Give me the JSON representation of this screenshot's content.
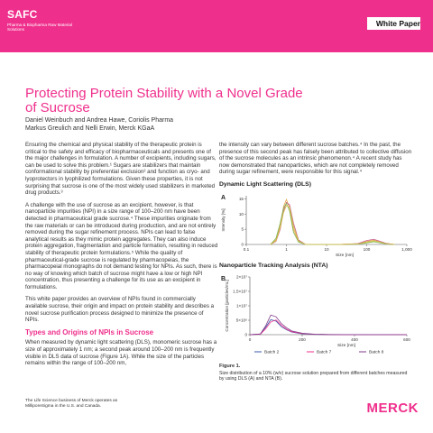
{
  "header": {
    "brand": "SAFC",
    "brand_sub": "Pharma & Biopharma Raw Material Solutions",
    "doc_type": "White Paper"
  },
  "title": "Protecting Protein Stability with a Novel Grade of Sucrose",
  "authors": {
    "line1": "Daniel Weinbuch and Andrea Hawe, Coriolis Pharma",
    "line2": "Markus Greulich and Nelli Erwin, Merck KGaA"
  },
  "left_column": {
    "p1": "Ensuring the chemical and physical stability of the therapeutic protein is critical to the safety and efficacy of biopharmaceuticals and presents one of the major challenges in formulation. A number of excipients, including sugars, can be used to solve this problem.¹ Sugars are stabilizers that maintain conformational stability by preferential exclusion² and function as cryo- and lyoprotectors in lyophilized formulations. Given these properties, it is not surprising that sucrose is one of the most widely used stabilizers in marketed drug products.³",
    "p2": "A challenge with the use of sucrose as an excipient, however, is that nanoparticle impurities (NPI) in a size range of 100–200 nm have been detected in pharmaceutical grade sucrose.⁴ These impurities originate from the raw materials or can be introduced during production, and are not entirely removed during the sugar refinement process. NPIs can lead to false analytical results as they mimic protein aggregates. They can also induce protein aggregation, fragmentation and particle formation, resulting in reduced stability of therapeutic protein formulations.⁵ While the quality of pharmaceutical-grade sucrose is regulated by pharmacopeias, the pharmacopeial monographs do not demand testing for NPIs. As such, there is no way of knowing which batch of sucrose might have a low or high NPI concentration, thus presenting a challenge for its use as an excipient in formulations.",
    "p3": "This white paper provides an overview of NPIs found in commercially available sucrose, their origin and impact on protein stability and describes a novel sucrose purification process designed to minimize the presence of NPIs.",
    "section_title": "Types and Origins of NPIs in Sucrose",
    "p4": "When measured by dynamic light scattering (DLS), monomeric sucrose has a size of approximately 1 nm; a second peak around 100–200 nm is frequently visible in DLS data of sucrose (Figure 1A). While the size of the particles remains within the range of 100–200 nm,"
  },
  "right_column": {
    "p1": "the intensity can vary between different sucrose batches.⁴ In the past, the presence of this second peak has falsely been attributed to collective diffusion of the sucrose molecules as an intrinsic phenomenon.⁴ A recent study has now demonstrated that nanoparticles, which are not completely removed during sugar refinement, were responsible for this signal.⁴"
  },
  "figure_dls": {
    "title": "Dynamic Light Scattering (DLS)",
    "panel": "A"
  },
  "figure_nta": {
    "title": "Nanoparticle Tracking Analysis (NTA)",
    "panel": "B"
  },
  "figure_caption": {
    "label": "Figure 1.",
    "text": "Size distribution of a 10% (w/v) sucrose solution prepared from different batches measured by using DLS (A) and NTA (B)."
  },
  "footer": {
    "note": "The Life Science business of Merck operates as MilliporeSigma in the U.S. and Canada.",
    "logo": "MERCK"
  },
  "chart_data": [
    {
      "type": "line",
      "title": "Dynamic Light Scattering (DLS)",
      "xlabel": "Size [nm]",
      "ylabel": "Intensity [%]",
      "x_scale": "log",
      "xlim": [
        0.1,
        1000
      ],
      "ylim": [
        0,
        16
      ],
      "x_ticks": [
        "0.1",
        "1",
        "10",
        "100",
        "1,000"
      ],
      "y_ticks": [
        "0",
        "5",
        "10",
        "15"
      ],
      "colors": [
        "#e8a24a",
        "#c85a8a",
        "#7bb24a",
        "#d4c24a"
      ],
      "series": [
        {
          "x": [
            0.4,
            0.55,
            0.7,
            0.85,
            1.0,
            1.2,
            1.5,
            2.0,
            3.0,
            20,
            60,
            100,
            150,
            200,
            300,
            500
          ],
          "y": [
            0,
            1.5,
            6,
            12.5,
            14.8,
            12,
            5,
            1,
            0,
            0,
            0.2,
            1.0,
            1.4,
            1.0,
            0.3,
            0
          ]
        },
        {
          "x": [
            0.4,
            0.55,
            0.7,
            0.85,
            1.0,
            1.2,
            1.5,
            2.0,
            3.0,
            20,
            60,
            100,
            150,
            200,
            300,
            500
          ],
          "y": [
            0,
            1,
            5,
            11,
            13.8,
            13,
            7,
            1.5,
            0,
            0,
            0.3,
            1.3,
            1.7,
            1.2,
            0.4,
            0
          ]
        },
        {
          "x": [
            0.4,
            0.55,
            0.7,
            0.85,
            1.0,
            1.2,
            1.5,
            2.0,
            3.0,
            20,
            60,
            100,
            150,
            200,
            300,
            500
          ],
          "y": [
            0,
            2,
            7,
            12,
            13.5,
            11,
            4,
            0.8,
            0,
            0,
            0.1,
            0.5,
            0.9,
            0.6,
            0.2,
            0
          ]
        },
        {
          "x": [
            0.4,
            0.55,
            0.7,
            0.85,
            1.0,
            1.2,
            1.5,
            2.0,
            3.0,
            20,
            60,
            100,
            150,
            200,
            300,
            500
          ],
          "y": [
            0,
            1.2,
            5.5,
            10.5,
            12.8,
            12.2,
            6,
            1.2,
            0,
            0,
            0.2,
            0.8,
            1.2,
            0.9,
            0.3,
            0
          ]
        }
      ]
    },
    {
      "type": "line",
      "title": "Nanoparticle Tracking Analysis (NTA)",
      "xlabel": "Size [nm]",
      "ylabel": "Concentration [particles/mL]",
      "xlim": [
        0,
        600
      ],
      "ylim": [
        0,
        20000000
      ],
      "x_ticks": [
        "0",
        "200",
        "400",
        "600"
      ],
      "y_ticks": [
        "0",
        "5×10⁶",
        "1×10⁷",
        "1.5×10⁷",
        "2×10⁷"
      ],
      "colors": [
        "#3a5aa8",
        "#ef2f8c",
        "#7f3a8a"
      ],
      "series": [
        {
          "name": "Batch 2",
          "x": [
            0,
            40,
            60,
            80,
            100,
            120,
            140,
            160,
            200,
            250,
            300,
            400,
            600
          ],
          "y": [
            0,
            200000,
            2500000,
            5200000,
            4700000,
            2800000,
            1700000,
            900000,
            300000,
            100000,
            40000,
            10000,
            0
          ]
        },
        {
          "name": "Batch 7",
          "x": [
            0,
            40,
            60,
            80,
            100,
            120,
            140,
            160,
            200,
            250,
            300,
            400,
            600
          ],
          "y": [
            0,
            150000,
            2000000,
            4400000,
            5100000,
            3300000,
            1900000,
            1000000,
            400000,
            120000,
            50000,
            10000,
            0
          ]
        },
        {
          "name": "Batch 8",
          "x": [
            0,
            40,
            60,
            80,
            100,
            120,
            140,
            160,
            200,
            250,
            300,
            400,
            600
          ],
          "y": [
            0,
            250000,
            3000000,
            6800000,
            6200000,
            3900000,
            2400000,
            1300000,
            500000,
            150000,
            60000,
            15000,
            0
          ]
        }
      ]
    }
  ]
}
